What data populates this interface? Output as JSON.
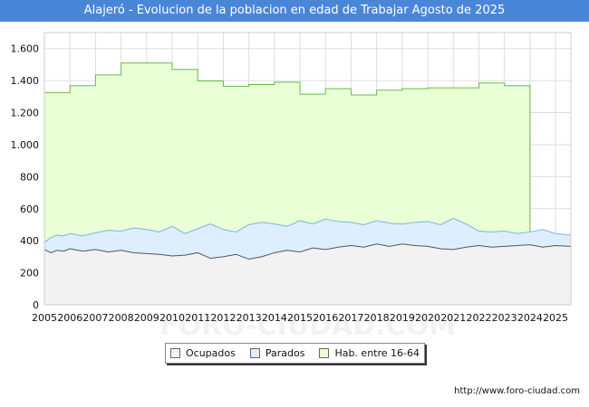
{
  "title": "Alajeró - Evolucion de la poblacion en edad de Trabajar Agosto de 2025",
  "source": "http://www.foro-ciudad.com",
  "watermark": "FORO-CIUDAD.COM",
  "colors": {
    "title_bg": "#4a86d8",
    "ocupados_fill": "#f2f2f2",
    "ocupados_line": "#555555",
    "parados_fill": "#ddeeff",
    "parados_line": "#7fb2e5",
    "hab_fill": "#eaffd6",
    "hab_line": "#66bb44"
  },
  "chart_data": {
    "type": "area",
    "title": "Alajeró - Evolucion de la poblacion en edad de Trabajar Agosto de 2025",
    "xlabel": "",
    "ylabel": "",
    "xlim": [
      2005,
      2025.6
    ],
    "ylim": [
      0,
      1700
    ],
    "y_ticks": [
      0,
      200,
      400,
      600,
      800,
      1000,
      1200,
      1400,
      1600
    ],
    "y_tick_labels": [
      "0",
      "200",
      "400",
      "600",
      "800",
      "1.000",
      "1.200",
      "1.400",
      "1.600"
    ],
    "x_ticks": [
      "2005",
      "2006",
      "2007",
      "2008",
      "2009",
      "2010",
      "2011",
      "2012",
      "2013",
      "2014",
      "2015",
      "2016",
      "2017",
      "2018",
      "2019",
      "2020",
      "2021",
      "2022",
      "2023",
      "2024",
      "2025"
    ],
    "grid": true,
    "legend_position": "bottom",
    "series": [
      {
        "name": "Hab. entre 16-64",
        "type": "step",
        "years": [
          2005,
          2006,
          2007,
          2008,
          2009,
          2010,
          2011,
          2012,
          2013,
          2014,
          2015,
          2016,
          2017,
          2018,
          2019,
          2020,
          2021,
          2022,
          2023
        ],
        "values": [
          1325,
          1368,
          1435,
          1510,
          1510,
          1470,
          1398,
          1365,
          1375,
          1390,
          1315,
          1350,
          1310,
          1340,
          1350,
          1355,
          1355,
          1385,
          1368
        ]
      },
      {
        "name": "Parados",
        "x": [
          2005.0,
          2005.25,
          2005.5,
          2005.75,
          2006.0,
          2006.5,
          2007.0,
          2007.5,
          2008.0,
          2008.5,
          2009.0,
          2009.5,
          2010.0,
          2010.5,
          2011.0,
          2011.5,
          2012.0,
          2012.5,
          2013.0,
          2013.5,
          2014.0,
          2014.5,
          2015.0,
          2015.5,
          2016.0,
          2016.5,
          2017.0,
          2017.5,
          2018.0,
          2018.5,
          2019.0,
          2019.5,
          2020.0,
          2020.5,
          2021.0,
          2021.5,
          2022.0,
          2022.5,
          2023.0,
          2023.5,
          2024.0,
          2024.5,
          2025.0,
          2025.6
        ],
        "values": [
          390,
          420,
          435,
          430,
          445,
          430,
          450,
          465,
          460,
          480,
          470,
          455,
          490,
          445,
          475,
          505,
          470,
          455,
          500,
          515,
          505,
          490,
          525,
          505,
          535,
          520,
          515,
          500,
          525,
          510,
          505,
          515,
          520,
          500,
          540,
          505,
          460,
          455,
          460,
          445,
          455,
          470,
          445,
          435
        ]
      },
      {
        "name": "Ocupados",
        "x": [
          2005.0,
          2005.25,
          2005.5,
          2005.75,
          2006.0,
          2006.5,
          2007.0,
          2007.5,
          2008.0,
          2008.5,
          2009.0,
          2009.5,
          2010.0,
          2010.5,
          2011.0,
          2011.5,
          2012.0,
          2012.5,
          2013.0,
          2013.5,
          2014.0,
          2014.5,
          2015.0,
          2015.5,
          2016.0,
          2016.5,
          2017.0,
          2017.5,
          2018.0,
          2018.5,
          2019.0,
          2019.5,
          2020.0,
          2020.5,
          2021.0,
          2021.5,
          2022.0,
          2022.5,
          2023.0,
          2023.5,
          2024.0,
          2024.5,
          2025.0,
          2025.6
        ],
        "values": [
          345,
          325,
          340,
          335,
          350,
          335,
          345,
          330,
          340,
          325,
          320,
          315,
          305,
          310,
          325,
          290,
          300,
          315,
          285,
          300,
          325,
          340,
          330,
          355,
          345,
          360,
          370,
          360,
          380,
          365,
          380,
          370,
          365,
          350,
          345,
          360,
          370,
          360,
          365,
          370,
          375,
          360,
          370,
          365
        ]
      }
    ]
  },
  "legend": {
    "items": [
      {
        "label": "Ocupados",
        "color": "#f2f2f2"
      },
      {
        "label": "Parados",
        "color": "#ddeeff"
      },
      {
        "label": "Hab. entre 16-64",
        "color": "#eaffd6"
      }
    ]
  }
}
